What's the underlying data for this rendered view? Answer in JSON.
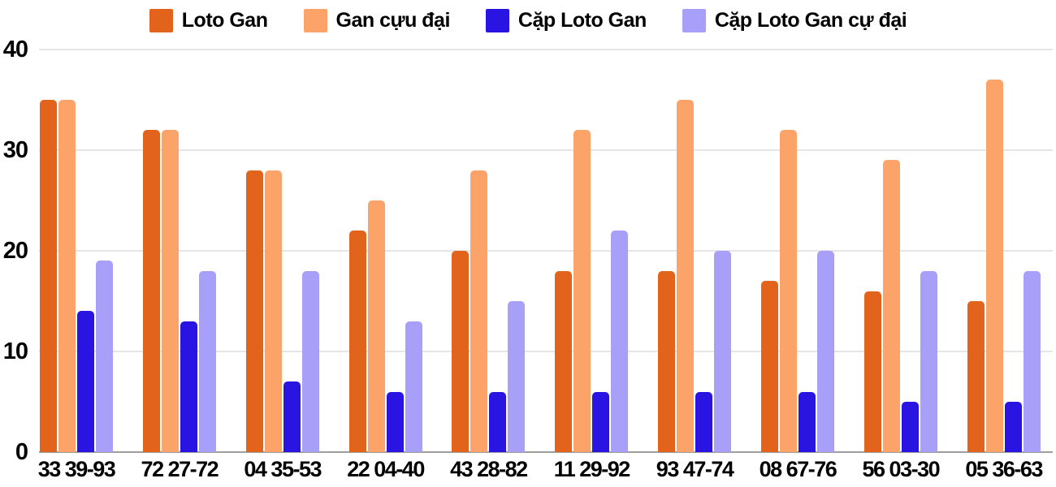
{
  "chart_data": {
    "type": "bar",
    "title": "",
    "xlabel": "",
    "ylabel": "",
    "categories": [
      "33 39-93",
      "72 27-72",
      "04 35-53",
      "22 04-40",
      "43 28-82",
      "11 29-92",
      "93 47-74",
      "08 67-76",
      "56 03-30",
      "05 36-63"
    ],
    "series": [
      {
        "name": "Loto Gan",
        "color": "#e2631b",
        "values": [
          35,
          32,
          28,
          22,
          20,
          18,
          18,
          17,
          16,
          15
        ]
      },
      {
        "name": "Gan cựu đại",
        "color": "#fca369",
        "values": [
          35,
          32,
          28,
          25,
          28,
          32,
          35,
          32,
          29,
          37
        ]
      },
      {
        "name": "Cặp Loto Gan",
        "color": "#2914e2",
        "values": [
          14,
          13,
          7,
          6,
          6,
          6,
          6,
          6,
          5,
          5
        ]
      },
      {
        "name": "Cặp Loto Gan cự đại",
        "color": "#a8a0f8",
        "values": [
          19,
          18,
          18,
          13,
          15,
          22,
          20,
          20,
          18,
          18
        ]
      }
    ],
    "y_ticks": [
      0,
      10,
      20,
      30,
      40
    ],
    "ylim": [
      0,
      40
    ],
    "grid": true,
    "legend_position": "top",
    "colors": {
      "gridline": "#e6e6e6",
      "axis_line": "#9e9e9e",
      "text": "#000000",
      "background": "#ffffff"
    }
  }
}
